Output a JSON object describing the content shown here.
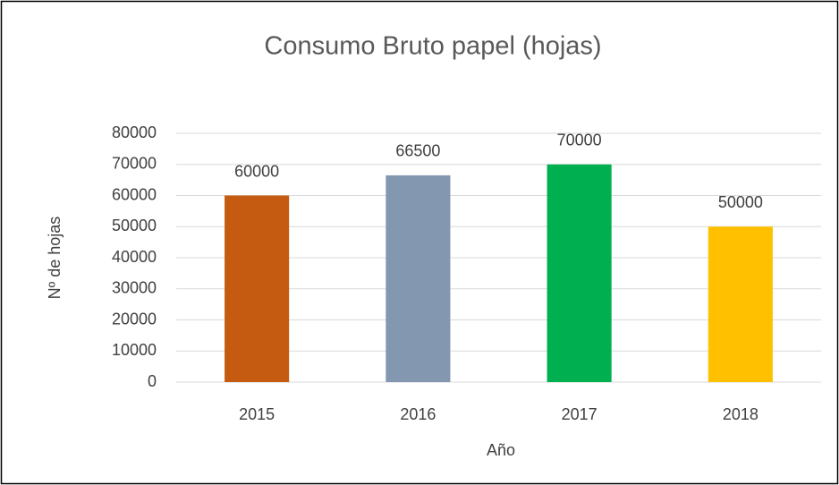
{
  "chart_data": {
    "type": "bar",
    "title": "Consumo Bruto papel (hojas)",
    "x_label": "Año",
    "y_label": "Nº de hojas",
    "categories": [
      "2015",
      "2016",
      "2017",
      "2018"
    ],
    "values": [
      60000,
      66500,
      70000,
      50000
    ],
    "colors": [
      "#c55a11",
      "#8497b0",
      "#00b050",
      "#ffc000"
    ],
    "ylim": [
      0,
      80000
    ],
    "yticks": [
      0,
      10000,
      20000,
      30000,
      40000,
      50000,
      60000,
      70000,
      80000
    ],
    "grid": true,
    "data_labels": true
  }
}
